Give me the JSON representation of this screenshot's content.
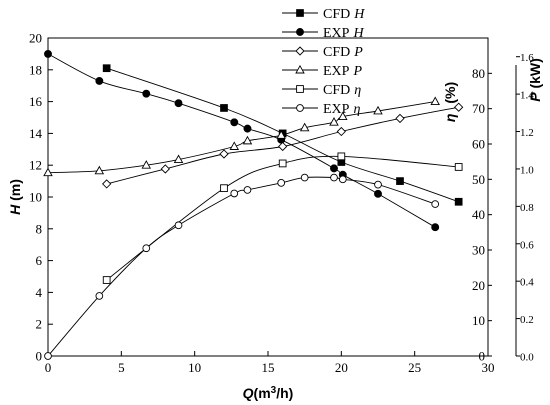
{
  "chart_data": {
    "type": "line",
    "xlabel": "Q(m³/h)",
    "xlabel_parts": {
      "main": "Q",
      "unit_open": "(m",
      "unit_sup": "3",
      "unit_close": "/h)"
    },
    "xlim": [
      0,
      30
    ],
    "x_ticks": [
      "0",
      "5",
      "10",
      "15",
      "20",
      "25",
      "30"
    ],
    "axes": {
      "H": {
        "label_main": "H",
        "label_unit": " (m)",
        "range": [
          0,
          20
        ],
        "ticks": [
          "0",
          "2",
          "4",
          "6",
          "8",
          "10",
          "12",
          "14",
          "16",
          "18",
          "20"
        ]
      },
      "eta": {
        "label_main": "η",
        "label_unit": "(%)",
        "range": [
          0,
          90
        ],
        "ticks": [
          "0",
          "10",
          "20",
          "30",
          "40",
          "50",
          "60",
          "70",
          "80"
        ]
      },
      "P": {
        "label_main": "P",
        "label_unit": " (kW)",
        "range": [
          0,
          1.7
        ],
        "ticks": [
          "0.0",
          "0.2",
          "0.4",
          "0.6",
          "0.8",
          "1.0",
          "1.2",
          "1.4",
          "1.6"
        ]
      }
    },
    "legend_position": "top-right",
    "series": [
      {
        "name_prefix": "CFD",
        "name_var": "H",
        "axis": "H",
        "marker": "filled-square",
        "x": [
          4,
          12,
          16,
          20,
          24,
          28
        ],
        "y": [
          18.1,
          15.6,
          14.0,
          12.2,
          11.0,
          9.7
        ]
      },
      {
        "name_prefix": "EXP",
        "name_var": "H",
        "axis": "H",
        "marker": "filled-circle",
        "x": [
          0,
          3.5,
          6.7,
          8.9,
          12.7,
          13.6,
          15.9,
          19.5,
          20.1,
          22.5,
          26.4
        ],
        "y": [
          19.0,
          17.3,
          16.5,
          15.9,
          14.7,
          14.3,
          13.6,
          11.8,
          11.4,
          10.2,
          8.1
        ]
      },
      {
        "name_prefix": "CFD",
        "name_var": "P",
        "axis": "P",
        "marker": "open-diamond",
        "x": [
          4,
          8,
          12,
          16,
          20,
          24,
          28
        ],
        "y": [
          0.92,
          1.0,
          1.08,
          1.12,
          1.2,
          1.27,
          1.33
        ]
      },
      {
        "name_prefix": "EXP",
        "name_var": "P",
        "axis": "P",
        "marker": "open-triangle",
        "x": [
          0,
          3.5,
          6.7,
          8.9,
          12.7,
          13.6,
          15.9,
          17.5,
          19.5,
          20.1,
          22.5,
          26.4
        ],
        "y": [
          0.98,
          0.99,
          1.02,
          1.05,
          1.12,
          1.15,
          1.18,
          1.22,
          1.25,
          1.28,
          1.31,
          1.36
        ]
      },
      {
        "name_prefix": "CFD",
        "name_var": "η",
        "axis": "eta",
        "marker": "open-square",
        "x": [
          4,
          12,
          16,
          20,
          28
        ],
        "y": [
          21.5,
          47.5,
          54.5,
          56.5,
          53.5
        ]
      },
      {
        "name_prefix": "EXP",
        "name_var": "η",
        "axis": "eta",
        "marker": "open-circle",
        "x": [
          0,
          3.5,
          6.7,
          8.9,
          12.7,
          13.6,
          15.9,
          17.5,
          19.5,
          20.1,
          22.5,
          26.4
        ],
        "y": [
          0,
          17,
          30.5,
          37,
          46,
          47,
          49,
          50.5,
          50.5,
          50,
          48.5,
          43
        ]
      }
    ]
  }
}
